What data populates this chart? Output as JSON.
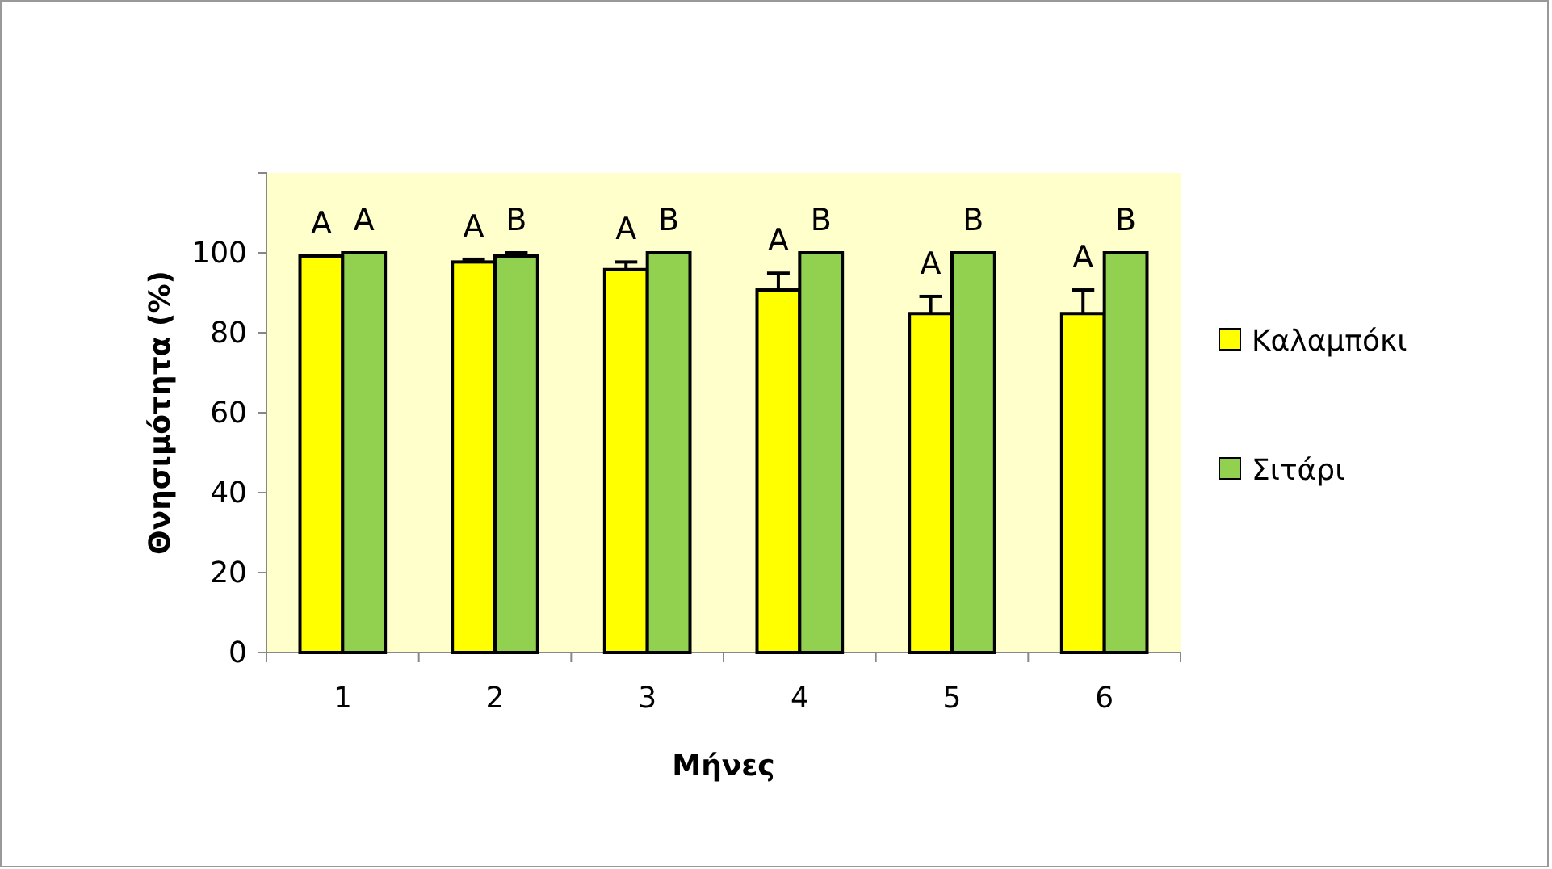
{
  "chart_data": {
    "type": "bar",
    "xlabel": "Μήνες",
    "ylabel": "Θνησιμότητα (%)",
    "categories": [
      "1",
      "2",
      "3",
      "4",
      "5",
      "6"
    ],
    "series": [
      {
        "name": "Καλαμπόκι",
        "color": "#ffff00",
        "values": [
          99.2,
          97.7,
          95.8,
          90.7,
          84.8,
          84.8
        ],
        "errors": [
          null,
          [
            97.7,
            98.4
          ],
          [
            95.8,
            97.7
          ],
          [
            90.7,
            94.9
          ],
          [
            84.8,
            89.1
          ],
          [
            84.8,
            90.7
          ]
        ]
      },
      {
        "name": "Σιτάρι",
        "color": "#92d050",
        "values": [
          100,
          99.2,
          100,
          100,
          100,
          100
        ],
        "errors": [
          null,
          [
            99.2,
            100
          ],
          null,
          null,
          null,
          null
        ]
      }
    ],
    "ylim": [
      0,
      120
    ],
    "yticks": [
      0,
      20,
      40,
      60,
      80,
      100
    ],
    "grid": false,
    "legend": "right",
    "annotations": [
      "A",
      "A",
      "A",
      "B",
      "A",
      "B",
      "A",
      "B",
      "A",
      "B",
      "A",
      "B"
    ]
  }
}
